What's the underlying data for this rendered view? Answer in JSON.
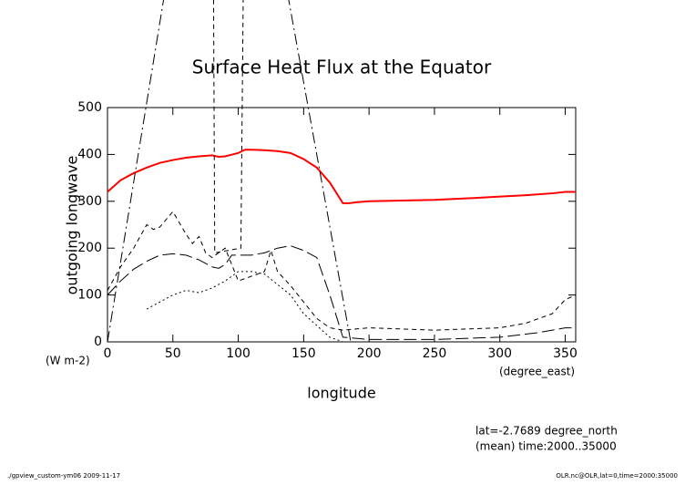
{
  "chart_data": {
    "type": "line",
    "title": "Surface Heat Flux at the Equator",
    "y_label": "outgoing longwave",
    "y_units": "(W m-2)",
    "x_label": "longitude",
    "x_units": "(degree_east)",
    "annotations": [
      "lat=-2.7689 degree_north",
      "(mean) time:2000..35000"
    ],
    "footer_left": "./gpview_custom-ym06  2009-11-17",
    "footer_right": "OLR.nc@OLR,lat=0,time=2000:35000",
    "xlim": [
      0,
      358
    ],
    "ylim": [
      0,
      500
    ],
    "xticks": [
      0,
      50,
      100,
      150,
      200,
      250,
      300,
      350
    ],
    "yticks": [
      0,
      100,
      200,
      300,
      400,
      500
    ],
    "series": [
      {
        "color": "#ff0000",
        "linestyle": "solid",
        "x": [
          0,
          10,
          20,
          30,
          40,
          50,
          60,
          70,
          80,
          85,
          90,
          100,
          105,
          110,
          120,
          130,
          140,
          150,
          160,
          170,
          180,
          185,
          190,
          200,
          250,
          280,
          300,
          320,
          340,
          350,
          358
        ],
        "values": [
          320,
          345,
          360,
          372,
          382,
          388,
          393,
          396,
          398,
          395,
          396,
          403,
          410,
          410,
          409,
          407,
          403,
          390,
          372,
          340,
          296,
          296,
          298,
          300,
          303,
          307,
          310,
          313,
          317,
          320,
          320
        ]
      },
      {
        "color": "#000000",
        "linestyle": "longdash",
        "x": [
          0,
          10,
          20,
          30,
          40,
          50,
          60,
          70,
          80,
          85,
          90,
          95,
          100,
          110,
          120,
          130,
          140,
          150,
          160,
          170,
          180,
          200,
          250,
          300,
          330,
          350,
          358
        ],
        "values": [
          100,
          130,
          155,
          172,
          185,
          188,
          185,
          175,
          160,
          157,
          165,
          185,
          185,
          185,
          190,
          200,
          205,
          195,
          180,
          100,
          10,
          5,
          5,
          10,
          20,
          30,
          30
        ]
      },
      {
        "color": "#000000",
        "linestyle": "shortdash",
        "x": [
          0,
          10,
          20,
          30,
          35,
          40,
          50,
          60,
          65,
          70,
          75,
          80,
          90,
          100,
          110,
          120,
          125,
          130,
          140,
          150,
          160,
          170,
          180,
          200,
          250,
          300,
          320,
          340,
          350,
          358
        ],
        "values": [
          110,
          160,
          200,
          250,
          240,
          245,
          278,
          230,
          210,
          225,
          190,
          180,
          200,
          130,
          140,
          150,
          195,
          150,
          120,
          85,
          50,
          30,
          25,
          30,
          25,
          30,
          40,
          60,
          90,
          100
        ]
      },
      {
        "color": "#000000",
        "linestyle": "dotted",
        "x": [
          30,
          50,
          60,
          70,
          80,
          90,
          100,
          110,
          120,
          140,
          150,
          170,
          180,
          200,
          250,
          300,
          350
        ],
        "values": [
          70,
          100,
          110,
          105,
          115,
          130,
          150,
          150,
          145,
          100,
          60,
          10,
          0,
          0,
          0,
          0,
          0
        ]
      },
      {
        "color": "#000000",
        "linestyle": "dashdot",
        "x": [
          0,
          47,
          134,
          186
        ],
        "values": [
          0,
          800,
          800,
          0
        ]
      },
      {
        "color": "#000000",
        "linestyle": "shortdash",
        "x": [
          81,
          82,
          102,
          104
        ],
        "values": [
          800,
          190,
          200,
          800
        ]
      }
    ]
  }
}
